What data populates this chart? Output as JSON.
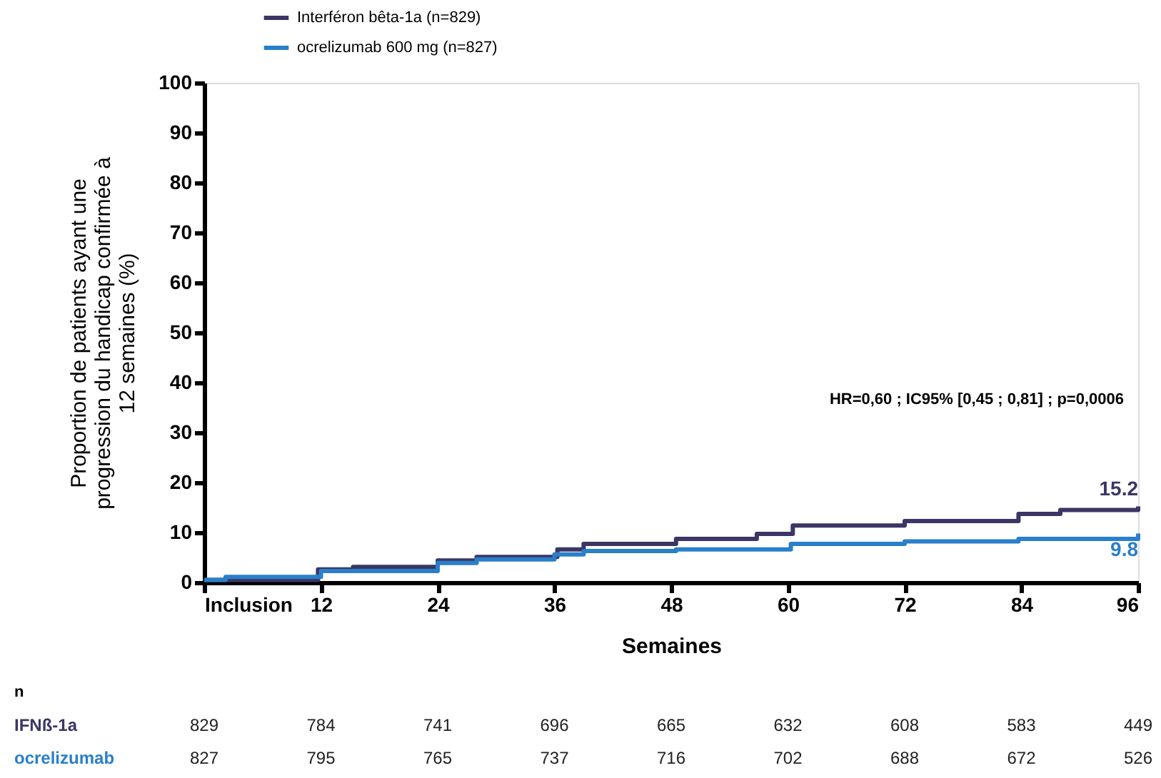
{
  "chart_data": {
    "type": "step",
    "ylabel": "Proportion de patients ayant une\nprogression du handicap confirmée à\n12 semaines (%)",
    "xlabel": "Semaines",
    "series": [
      {
        "name": "Interféron bêta-1a (n=829)",
        "color": "#3b3665",
        "x": [
          0,
          11.7,
          15.3,
          24,
          28,
          36.3,
          39,
          48.5,
          56.8,
          60.5,
          72,
          83.7,
          88,
          96
        ],
        "values": [
          0.5,
          2.6,
          3.1,
          4.4,
          5.1,
          6.6,
          7.7,
          8.7,
          9.7,
          11.4,
          12.3,
          13.7,
          14.5,
          15.2
        ]
      },
      {
        "name": "ocrelizumab 600 mg (n=827)",
        "color": "#2a7fc9",
        "x": [
          0,
          2.2,
          12,
          24,
          28,
          36,
          39,
          48.5,
          60.3,
          72,
          83.7,
          96
        ],
        "values": [
          0.5,
          1.1,
          2.3,
          3.9,
          4.6,
          5.6,
          6.3,
          6.6,
          7.7,
          8.2,
          8.7,
          9.8
        ]
      }
    ],
    "xlim": [
      0,
      96
    ],
    "xticks": [
      {
        "value": 0,
        "label": "Inclusion"
      },
      12,
      24,
      36,
      48,
      60,
      72,
      84,
      96
    ],
    "ylim": [
      0,
      100
    ],
    "yticks": [
      0,
      10,
      20,
      30,
      40,
      50,
      60,
      70,
      80,
      90,
      100
    ],
    "grid": false,
    "legend": "top left",
    "annotations": [
      "HR=0,60 ; IC95% [0,45 ; 0,81] ; p=0,0006",
      {
        "text": "15.2",
        "x": 96,
        "y": 15.2
      },
      {
        "text": "9.8",
        "x": 96,
        "y": 9.8
      },
      "n",
      "IFNß-1a",
      "829",
      "784",
      "741",
      "696",
      "665",
      "632",
      "608",
      "583",
      "449",
      "ocrelizumab",
      "827",
      "795",
      "765",
      "737",
      "716",
      "702",
      "688",
      "672",
      "526"
    ]
  }
}
